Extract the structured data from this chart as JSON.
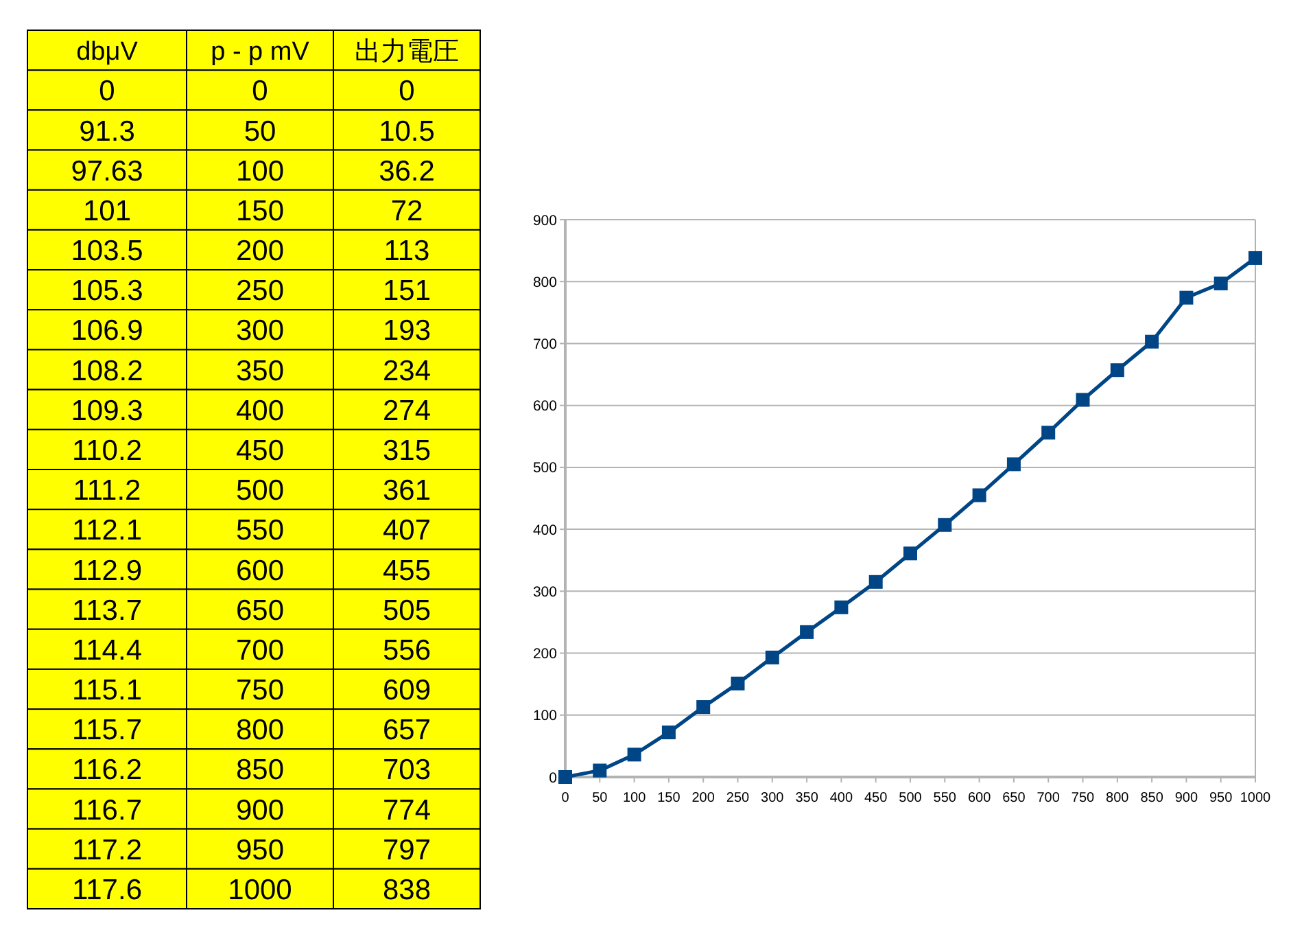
{
  "chart_data": [
    {
      "type": "heatmap",
      "ylabel": "dbμV",
      "categories": [
        "p - p mV",
        "出力電圧"
      ],
      "y_categories": [
        "0",
        "91.3",
        "97.63",
        "101",
        "103.5",
        "105.3",
        "106.9",
        "108.2",
        "109.3",
        "110.2",
        "111.2",
        "112.1",
        "112.9",
        "113.7",
        "114.4",
        "115.1",
        "115.7",
        "116.2",
        "116.7",
        "117.2",
        "117.6"
      ],
      "color": "#ffff00",
      "data_labels": true,
      "cells": [
        [
          0,
          0
        ],
        [
          50,
          10.5
        ],
        [
          100,
          36.2
        ],
        [
          150,
          72
        ],
        [
          200,
          113
        ],
        [
          250,
          151
        ],
        [
          300,
          193
        ],
        [
          350,
          234
        ],
        [
          400,
          274
        ],
        [
          450,
          315
        ],
        [
          500,
          361
        ],
        [
          550,
          407
        ],
        [
          600,
          455
        ],
        [
          650,
          505
        ],
        [
          700,
          556
        ],
        [
          750,
          609
        ],
        [
          800,
          657
        ],
        [
          850,
          703
        ],
        [
          900,
          774
        ],
        [
          950,
          797
        ],
        [
          1000,
          838
        ]
      ]
    },
    {
      "type": "line",
      "x": [
        0,
        50,
        100,
        150,
        200,
        250,
        300,
        350,
        400,
        450,
        500,
        550,
        600,
        650,
        700,
        750,
        800,
        850,
        900,
        950,
        1000
      ],
      "values": [
        0,
        10.5,
        36.2,
        72,
        113,
        151,
        193,
        234,
        274,
        315,
        361,
        407,
        455,
        505,
        556,
        609,
        657,
        703,
        774,
        797,
        838
      ],
      "color": "#004586",
      "marker": "square",
      "line_style": "solid",
      "grid": "y",
      "xlim": [
        0,
        1000
      ],
      "xticks": [
        0,
        50,
        100,
        150,
        200,
        250,
        300,
        350,
        400,
        450,
        500,
        550,
        600,
        650,
        700,
        750,
        800,
        850,
        900,
        950,
        1000
      ],
      "ylim": [
        0,
        900
      ],
      "yticks": [
        0,
        100,
        200,
        300,
        400,
        500,
        600,
        700,
        800,
        900
      ]
    }
  ]
}
